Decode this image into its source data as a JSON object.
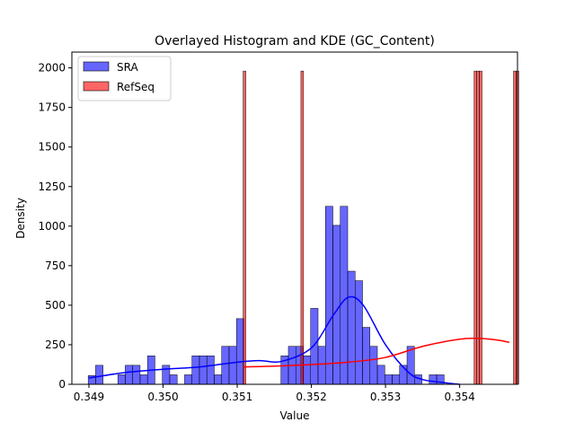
{
  "chart_data": {
    "type": "bar",
    "title": "Overlayed Histogram and KDE (GC_Content)",
    "xlabel": "Value",
    "ylabel": "Density",
    "xlim": [
      0.34877,
      0.35478
    ],
    "ylim": [
      0,
      2100
    ],
    "x_ticks": [
      0.349,
      0.35,
      0.351,
      0.352,
      0.353,
      0.354
    ],
    "x_tick_labels": [
      "0.349",
      "0.350",
      "0.351",
      "0.352",
      "0.353",
      "0.354"
    ],
    "y_ticks": [
      0,
      250,
      500,
      750,
      1000,
      1250,
      1500,
      1750,
      2000
    ],
    "y_tick_labels": [
      "0",
      "250",
      "500",
      "750",
      "1000",
      "1250",
      "1500",
      "1750",
      "2000"
    ],
    "legend_position": "top-left",
    "series": [
      {
        "name": "SRA",
        "color": "#0000ff",
        "bin_start": 0.34899,
        "bin_width": 0.0001,
        "values": [
          55,
          120,
          0,
          0,
          60,
          120,
          120,
          60,
          180,
          0,
          120,
          60,
          0,
          60,
          180,
          180,
          180,
          60,
          240,
          240,
          415,
          0,
          0,
          0,
          0,
          0,
          180,
          240,
          240,
          180,
          480,
          240,
          1125,
          1005,
          1125,
          715,
          655,
          360,
          240,
          120,
          60,
          60,
          120,
          240,
          60,
          0,
          60,
          60
        ],
        "kde": {
          "x": [
            0.349,
            0.3495,
            0.35,
            0.3505,
            0.351,
            0.3513,
            0.3516,
            0.352,
            0.3523,
            0.3525,
            0.3527,
            0.353,
            0.3533,
            0.3535,
            0.3538,
            0.354
          ],
          "y": [
            40,
            75,
            95,
            110,
            140,
            150,
            145,
            230,
            440,
            550,
            500,
            250,
            80,
            30,
            10,
            0
          ]
        }
      },
      {
        "name": "RefSeq",
        "color": "#ff0000",
        "bin_start": 0.35108,
        "bin_width": 3.54e-05,
        "values": [
          1980,
          0,
          0,
          0,
          0,
          0,
          0,
          0,
          0,
          0,
          0,
          0,
          0,
          0,
          0,
          0,
          0,
          0,
          0,
          0,
          0,
          0,
          1980,
          0,
          0,
          0,
          0,
          0,
          0,
          0,
          0,
          0,
          0,
          0,
          0,
          0,
          0,
          0,
          0,
          0,
          0,
          0,
          0,
          0,
          0,
          0,
          0,
          0,
          0,
          0,
          0,
          0,
          0,
          0,
          0,
          0,
          0,
          0,
          0,
          0,
          0,
          0,
          0,
          0,
          0,
          0,
          0,
          0,
          0,
          0,
          0,
          0,
          0,
          0,
          0,
          0,
          0,
          0,
          0,
          0,
          0,
          0,
          0,
          0,
          0,
          0,
          0,
          0,
          1980,
          1980,
          1980,
          0,
          0,
          0,
          0,
          0,
          0,
          0,
          0,
          0,
          0,
          0,
          0,
          1980,
          1980
        ],
        "kde": {
          "x": [
            0.35108,
            0.3515,
            0.352,
            0.3525,
            0.353,
            0.3535,
            0.354,
            0.35425,
            0.3545,
            0.35467
          ],
          "y": [
            110,
            115,
            125,
            140,
            170,
            240,
            285,
            290,
            280,
            265
          ]
        }
      }
    ]
  }
}
